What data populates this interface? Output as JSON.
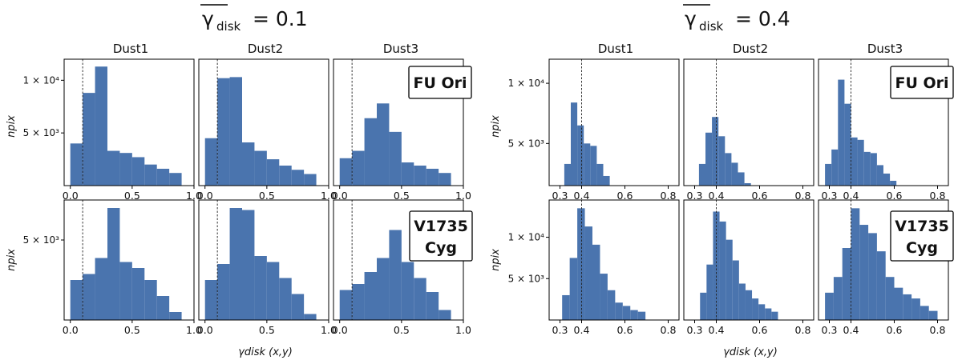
{
  "figure": {
    "panels": [
      {
        "title": "γ̄disk = 0.1",
        "title_parts": {
          "symbol": "γ",
          "sub": "disk",
          "value": "= 0.1"
        },
        "columns": [
          "Dust1",
          "Dust2",
          "Dust3"
        ],
        "ylabel": "npix",
        "xlabel": "γdisk (x,y)"
      },
      {
        "title": "γ̄disk = 0.4",
        "title_parts": {
          "symbol": "γ",
          "sub": "disk",
          "value": "= 0.4"
        },
        "columns": [
          "Dust1",
          "Dust2",
          "Dust3"
        ],
        "ylabel": "npix",
        "xlabel": "γdisk (x,y)"
      }
    ],
    "row_labels": [
      "FU Ori",
      "V1735 Cyg"
    ]
  },
  "chart_data": [
    {
      "type": "bar",
      "panel": "γ̄disk = 0.1",
      "source": "FU Ori",
      "column": "Dust1",
      "bin_edges": [
        0,
        0.1,
        0.2,
        0.3,
        0.4,
        0.5,
        0.6,
        0.7,
        0.8,
        0.9
      ],
      "values": [
        4000,
        8800,
        11300,
        3300,
        3100,
        2700,
        2000,
        1600,
        1200
      ],
      "vline": 0.1,
      "xlim": [
        -0.05,
        1.0
      ],
      "xticks": [
        0,
        0.5,
        1.0
      ],
      "xtick_labels": [
        "0.0",
        "0.5",
        "1.0"
      ],
      "ylim": [
        0,
        12000
      ],
      "yticks": [
        5000,
        10000
      ],
      "ytick_labels": [
        "5 × 10³",
        "1 × 10⁴"
      ]
    },
    {
      "type": "bar",
      "panel": "γ̄disk = 0.1",
      "source": "FU Ori",
      "column": "Dust2",
      "bin_edges": [
        0,
        0.1,
        0.2,
        0.3,
        0.4,
        0.5,
        0.6,
        0.7,
        0.8,
        0.9
      ],
      "values": [
        4500,
        10200,
        10300,
        4100,
        3300,
        2500,
        1900,
        1500,
        1100
      ],
      "vline": 0.1,
      "xlim": [
        -0.05,
        1.0
      ],
      "xticks": [
        0,
        0.5,
        1.0
      ],
      "xtick_labels": [
        "0.0",
        "0.5",
        "1.0"
      ],
      "ylim": [
        0,
        12000
      ]
    },
    {
      "type": "bar",
      "panel": "γ̄disk = 0.1",
      "source": "FU Ori",
      "column": "Dust3",
      "bin_edges": [
        0,
        0.1,
        0.2,
        0.3,
        0.4,
        0.5,
        0.6,
        0.7,
        0.8,
        0.9
      ],
      "values": [
        2600,
        3300,
        6400,
        7800,
        5100,
        2200,
        1900,
        1600,
        1200
      ],
      "vline": 0.1,
      "xlim": [
        -0.05,
        1.0
      ],
      "xticks": [
        0,
        0.5,
        1.0
      ],
      "xtick_labels": [
        "0.0",
        "0.5",
        "1.0"
      ],
      "ylim": [
        0,
        12000
      ]
    },
    {
      "type": "bar",
      "panel": "γ̄disk = 0.1",
      "source": "V1735 Cyg",
      "column": "Dust1",
      "bin_edges": [
        0,
        0.1,
        0.2,
        0.3,
        0.4,
        0.5,
        0.6,
        0.7,
        0.8,
        0.9
      ],
      "values": [
        3000,
        3300,
        4100,
        6600,
        3900,
        3600,
        3000,
        2200,
        1400
      ],
      "vline": 0.1,
      "xlim": [
        -0.05,
        1.0
      ],
      "xticks": [
        0,
        0.5,
        1.0
      ],
      "xtick_labels": [
        "0.0",
        "0.5",
        "1.0"
      ],
      "ylim": [
        1000,
        7000
      ],
      "yticks": [
        5000
      ],
      "ytick_labels": [
        "5 × 10³"
      ]
    },
    {
      "type": "bar",
      "panel": "γ̄disk = 0.1",
      "source": "V1735 Cyg",
      "column": "Dust2",
      "bin_edges": [
        0,
        0.1,
        0.2,
        0.3,
        0.4,
        0.5,
        0.6,
        0.7,
        0.8,
        0.9
      ],
      "values": [
        3000,
        3800,
        6600,
        6500,
        4200,
        3900,
        3100,
        2300,
        1300
      ],
      "vline": 0.1,
      "xlim": [
        -0.05,
        1.0
      ],
      "xticks": [
        0,
        0.5,
        1.0
      ],
      "xtick_labels": [
        "0.0",
        "0.5",
        "1.0"
      ],
      "ylim": [
        1000,
        7000
      ]
    },
    {
      "type": "bar",
      "panel": "γ̄disk = 0.1",
      "source": "V1735 Cyg",
      "column": "Dust3",
      "bin_edges": [
        0,
        0.1,
        0.2,
        0.3,
        0.4,
        0.5,
        0.6,
        0.7,
        0.8,
        0.9
      ],
      "values": [
        2500,
        2800,
        3400,
        4100,
        5500,
        3900,
        3100,
        2400,
        1500
      ],
      "vline": 0.1,
      "xlim": [
        -0.05,
        1.0
      ],
      "xticks": [
        0,
        0.5,
        1.0
      ],
      "xtick_labels": [
        "0.0",
        "0.5",
        "1.0"
      ],
      "ylim": [
        1000,
        7000
      ]
    },
    {
      "type": "bar",
      "panel": "γ̄disk = 0.4",
      "source": "FU Ori",
      "column": "Dust1",
      "bin_edges": [
        0.32,
        0.35,
        0.38,
        0.41,
        0.44,
        0.47,
        0.5,
        0.53,
        0.56
      ],
      "values": [
        3300,
        8400,
        6500,
        5000,
        4800,
        3300,
        2300,
        1500
      ],
      "vline": 0.4,
      "xlim": [
        0.25,
        0.85
      ],
      "xticks": [
        0.3,
        0.4,
        0.6,
        0.8
      ],
      "xtick_labels": [
        "0.3",
        "0.4",
        "0.6",
        "0.8"
      ],
      "ylim": [
        1500,
        12000
      ],
      "yticks": [
        5000,
        10000
      ],
      "ytick_labels": [
        "5 × 10³",
        "1 × 10⁴"
      ]
    },
    {
      "type": "bar",
      "panel": "γ̄disk = 0.4",
      "source": "FU Ori",
      "column": "Dust2",
      "bin_edges": [
        0.32,
        0.35,
        0.38,
        0.41,
        0.44,
        0.47,
        0.5,
        0.53,
        0.56
      ],
      "values": [
        3300,
        5900,
        7200,
        5600,
        4200,
        3400,
        2600,
        1700
      ],
      "vline": 0.4,
      "xlim": [
        0.25,
        0.85
      ],
      "xticks": [
        0.3,
        0.4,
        0.6,
        0.8
      ],
      "xtick_labels": [
        "0.3",
        "0.4",
        "0.6",
        "0.8"
      ],
      "ylim": [
        1500,
        12000
      ]
    },
    {
      "type": "bar",
      "panel": "γ̄disk = 0.4",
      "source": "FU Ori",
      "column": "Dust3",
      "bin_edges": [
        0.28,
        0.31,
        0.34,
        0.37,
        0.4,
        0.43,
        0.46,
        0.49,
        0.52,
        0.55,
        0.58,
        0.61
      ],
      "values": [
        3300,
        4500,
        10300,
        8300,
        5500,
        5300,
        4300,
        4200,
        3200,
        2500,
        1900
      ],
      "vline": 0.4,
      "xlim": [
        0.25,
        0.85
      ],
      "xticks": [
        0.3,
        0.4,
        0.6,
        0.8
      ],
      "xtick_labels": [
        "0.3",
        "0.4",
        "0.6",
        "0.8"
      ],
      "ylim": [
        1500,
        12000
      ]
    },
    {
      "type": "bar",
      "panel": "γ̄disk = 0.4",
      "source": "V1735 Cyg",
      "column": "Dust1",
      "bin_edges": [
        0.31,
        0.345,
        0.38,
        0.415,
        0.45,
        0.485,
        0.52,
        0.555,
        0.59,
        0.625,
        0.66,
        0.695
      ],
      "values": [
        3000,
        7500,
        13500,
        11300,
        9100,
        5600,
        3600,
        2100,
        1700,
        1200,
        1000
      ],
      "vline": 0.4,
      "xlim": [
        0.25,
        0.85
      ],
      "xticks": [
        0.3,
        0.4,
        0.6,
        0.8
      ],
      "xtick_labels": [
        "0.3",
        "0.4",
        "0.6",
        "0.8"
      ],
      "ylim": [
        0,
        14500
      ],
      "yticks": [
        5000,
        10000
      ],
      "ytick_labels": [
        "5 × 10³",
        "1 × 10⁴"
      ]
    },
    {
      "type": "bar",
      "panel": "γ̄disk = 0.4",
      "source": "V1735 Cyg",
      "column": "Dust2",
      "bin_edges": [
        0.325,
        0.355,
        0.385,
        0.415,
        0.445,
        0.475,
        0.505,
        0.535,
        0.565,
        0.595,
        0.625,
        0.655,
        0.685
      ],
      "values": [
        3300,
        6700,
        13100,
        11900,
        9700,
        7200,
        4400,
        3600,
        2600,
        1900,
        1400,
        1000
      ],
      "vline": 0.4,
      "xlim": [
        0.25,
        0.85
      ],
      "xticks": [
        0.3,
        0.4,
        0.6,
        0.8
      ],
      "xtick_labels": [
        "0.3",
        "0.4",
        "0.6",
        "0.8"
      ],
      "ylim": [
        0,
        14500
      ]
    },
    {
      "type": "bar",
      "panel": "γ̄disk = 0.4",
      "source": "V1735 Cyg",
      "column": "Dust3",
      "bin_edges": [
        0.28,
        0.32,
        0.36,
        0.4,
        0.44,
        0.48,
        0.52,
        0.56,
        0.6,
        0.64,
        0.68,
        0.72,
        0.76,
        0.8
      ],
      "values": [
        3300,
        5200,
        8700,
        13500,
        11500,
        10500,
        8300,
        5200,
        3900,
        3100,
        2600,
        1700,
        1100
      ],
      "vline": 0.4,
      "xlim": [
        0.25,
        0.85
      ],
      "xticks": [
        0.3,
        0.4,
        0.6,
        0.8
      ],
      "xtick_labels": [
        "0.3",
        "0.4",
        "0.6",
        "0.8"
      ],
      "ylim": [
        0,
        14500
      ]
    }
  ]
}
